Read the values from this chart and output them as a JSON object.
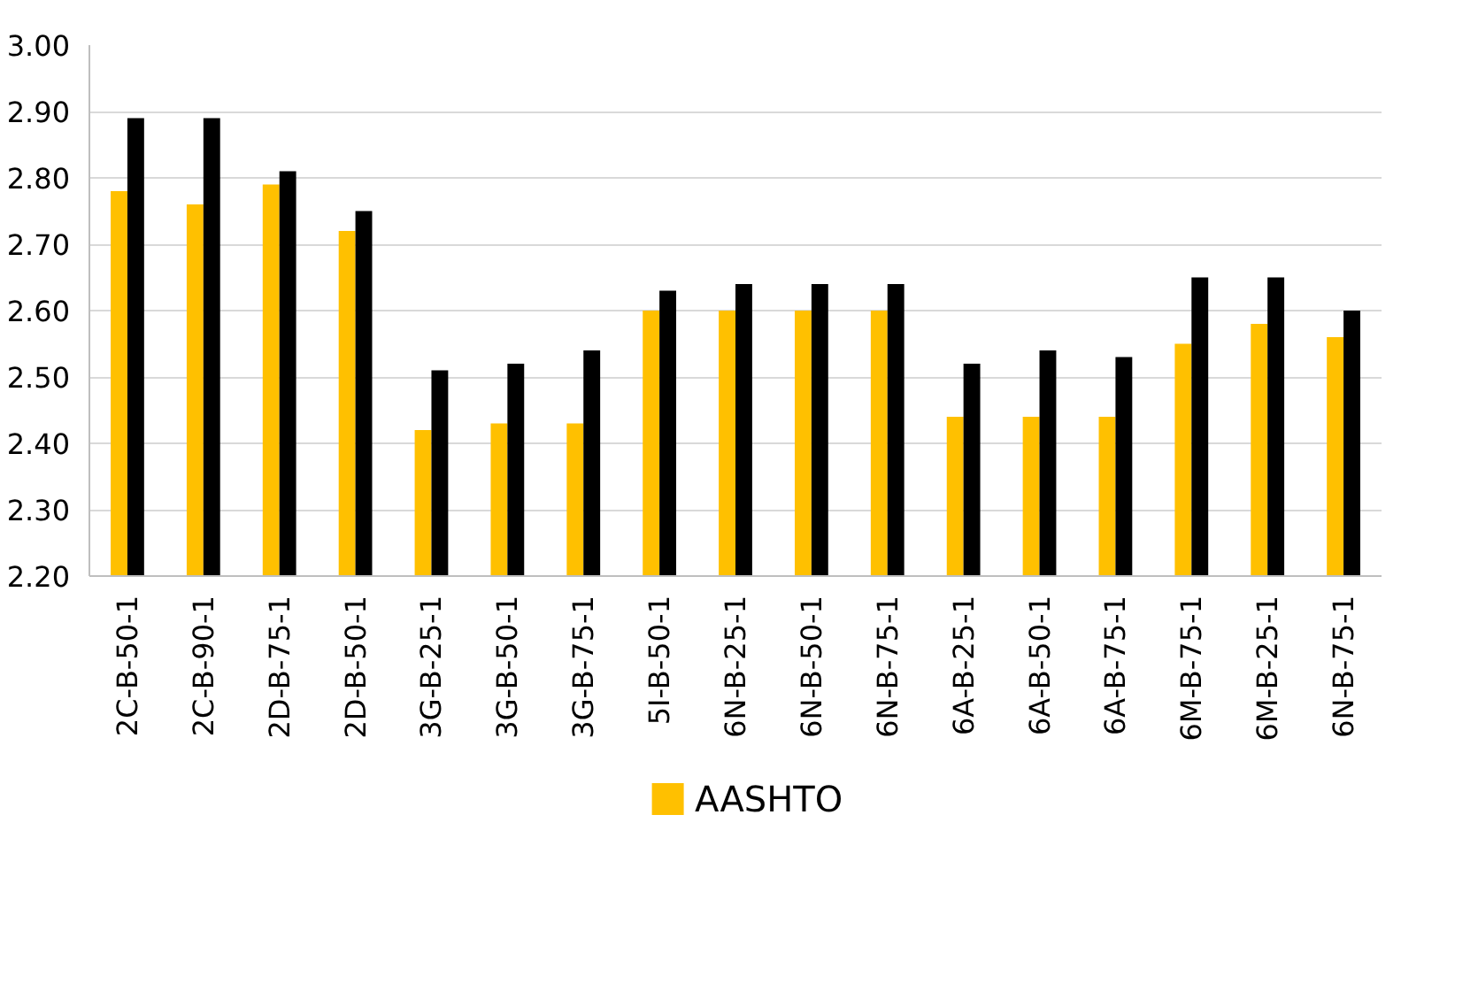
{
  "chart_data": {
    "type": "bar",
    "categories": [
      "2C-B-50-1",
      "2C-B-90-1",
      "2D-B-75-1",
      "2D-B-50-1",
      "3G-B-25-1",
      "3G-B-50-1",
      "3G-B-75-1",
      "5I-B-50-1",
      "6N-B-25-1",
      "6N-B-50-1",
      "6N-B-75-1",
      "6A-B-25-1",
      "6A-B-50-1",
      "6A-B-75-1",
      "6M-B-75-1",
      "6M-B-25-1",
      "6N-B-75-1"
    ],
    "series": [
      {
        "name": "AASHTO",
        "color": "#ffc000",
        "values": [
          2.78,
          2.76,
          2.79,
          2.72,
          2.42,
          2.43,
          2.43,
          2.6,
          2.6,
          2.6,
          2.6,
          2.44,
          2.44,
          2.44,
          2.55,
          2.58,
          2.56
        ]
      },
      {
        "color": "#000000",
        "values": [
          2.89,
          2.89,
          2.81,
          2.75,
          2.51,
          2.52,
          2.54,
          2.63,
          2.64,
          2.64,
          2.64,
          2.52,
          2.54,
          2.53,
          2.65,
          2.65,
          2.6
        ]
      }
    ],
    "ylim": [
      2.2,
      3.0
    ],
    "yticks": [
      {
        "value": 2.2,
        "label": "2.20"
      },
      {
        "value": 2.3,
        "label": "2.30"
      },
      {
        "value": 2.4,
        "label": "2.40"
      },
      {
        "value": 2.5,
        "label": "2.50"
      },
      {
        "value": 2.6,
        "label": "2.60"
      },
      {
        "value": 2.7,
        "label": "2.70"
      },
      {
        "value": 2.8,
        "label": "2.80"
      },
      {
        "value": 2.9,
        "label": "2.90"
      },
      {
        "value": 3.0,
        "label": "3.00"
      }
    ],
    "grid": "y",
    "legend": "bottom"
  }
}
